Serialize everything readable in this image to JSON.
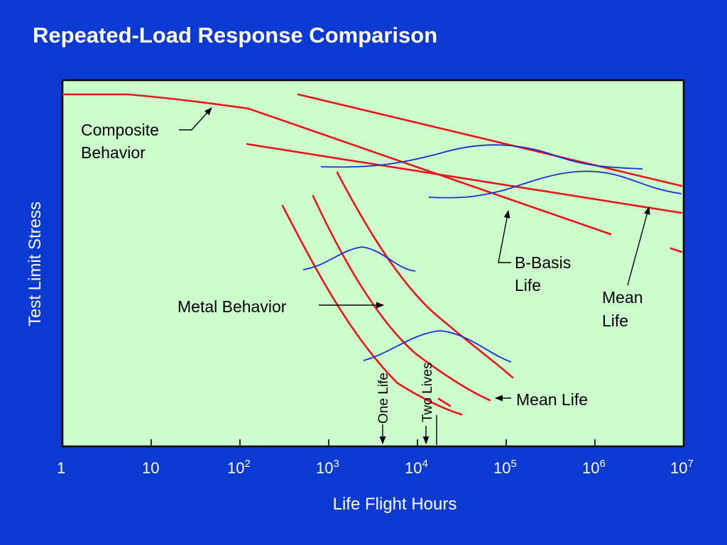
{
  "title": "Repeated-Load Response Comparison",
  "colors": {
    "background": "#0a3ad2",
    "plot_area": "#ccfccc",
    "behavior_curves": "#e8141a",
    "distribution_curves": "#1a2fd0",
    "text": "#ffffff"
  },
  "axes": {
    "x_title": "Life Flight Hours",
    "y_title": "Test Limit Stress",
    "x_scale": "log",
    "x_ticks": [
      {
        "base": "1",
        "exp": ""
      },
      {
        "base": "10",
        "exp": ""
      },
      {
        "base": "10",
        "exp": "2"
      },
      {
        "base": "10",
        "exp": "3"
      },
      {
        "base": "10",
        "exp": "4"
      },
      {
        "base": "10",
        "exp": "5"
      },
      {
        "base": "10",
        "exp": "6"
      },
      {
        "base": "10",
        "exp": "7"
      }
    ]
  },
  "annotations": {
    "composite_line1": "Composite",
    "composite_line2": "Behavior",
    "bbasis_line1": "B-Basis",
    "bbasis_line2": "Life",
    "mean_line1": "Mean",
    "mean_line2": "Life",
    "metal_behavior": "Metal Behavior",
    "metal_mean_life": "Mean Life",
    "one_life": "One Life",
    "two_lives": "Two Lives"
  },
  "icons": {
    "arrows": "arrow-icon"
  }
}
